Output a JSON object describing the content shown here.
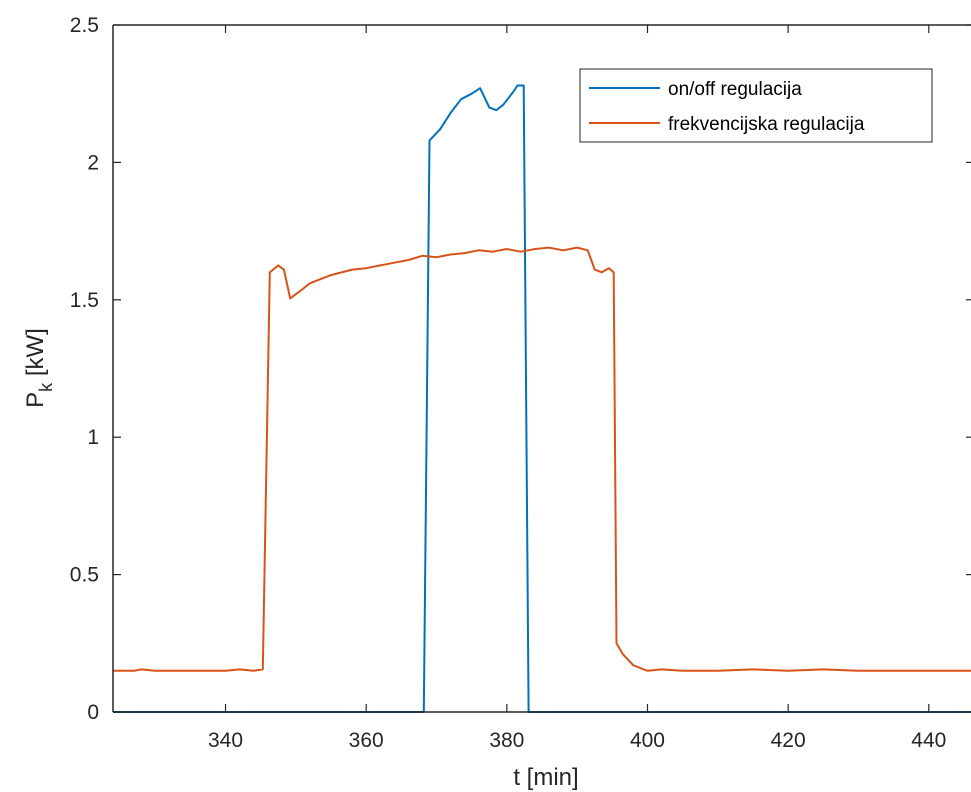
{
  "chart_data": {
    "type": "line",
    "xlabel": "t [min]",
    "ylabel": {
      "main": "P",
      "sub": "k",
      "unit": " [kW]"
    },
    "xlim": [
      324,
      446
    ],
    "ylim": [
      0,
      2.5
    ],
    "xticks": [
      340,
      360,
      380,
      400,
      420,
      440
    ],
    "xtick_labels": [
      "340",
      "360",
      "380",
      "400",
      "420",
      "440"
    ],
    "yticks": [
      0,
      0.5,
      1,
      1.5,
      2,
      2.5
    ],
    "ytick_labels": [
      "0",
      "0.5",
      "1",
      "1.5",
      "2",
      "2.5"
    ],
    "grid": false,
    "legend_position": "top-right",
    "series": [
      {
        "name": "on/off regulacija",
        "color": "#0072BD",
        "points": [
          [
            324,
            0
          ],
          [
            368.2,
            0
          ],
          [
            369.0,
            2.08
          ],
          [
            370.5,
            2.12
          ],
          [
            372.0,
            2.18
          ],
          [
            373.5,
            2.23
          ],
          [
            375.0,
            2.25
          ],
          [
            376.2,
            2.27
          ],
          [
            377.5,
            2.2
          ],
          [
            378.5,
            2.19
          ],
          [
            379.5,
            2.21
          ],
          [
            381.0,
            2.26
          ],
          [
            381.5,
            2.28
          ],
          [
            382.4,
            2.28
          ],
          [
            383.1,
            0
          ],
          [
            446,
            0
          ]
        ]
      },
      {
        "name": "frekvencijska regulacija",
        "color": "#D95319",
        "points": [
          [
            324,
            0.15
          ],
          [
            327,
            0.15
          ],
          [
            328,
            0.155
          ],
          [
            330,
            0.15
          ],
          [
            335,
            0.15
          ],
          [
            340,
            0.15
          ],
          [
            342,
            0.155
          ],
          [
            344,
            0.15
          ],
          [
            345.3,
            0.155
          ],
          [
            346.3,
            1.6
          ],
          [
            347.5,
            1.625
          ],
          [
            348.3,
            1.61
          ],
          [
            349.2,
            1.505
          ],
          [
            350.5,
            1.53
          ],
          [
            352,
            1.56
          ],
          [
            355,
            1.59
          ],
          [
            358,
            1.61
          ],
          [
            360,
            1.615
          ],
          [
            362,
            1.625
          ],
          [
            364,
            1.635
          ],
          [
            366,
            1.645
          ],
          [
            368,
            1.66
          ],
          [
            370,
            1.655
          ],
          [
            372,
            1.665
          ],
          [
            374,
            1.67
          ],
          [
            376,
            1.68
          ],
          [
            378,
            1.675
          ],
          [
            380,
            1.685
          ],
          [
            382,
            1.675
          ],
          [
            384,
            1.685
          ],
          [
            386,
            1.69
          ],
          [
            388,
            1.68
          ],
          [
            390,
            1.69
          ],
          [
            391.5,
            1.68
          ],
          [
            392.5,
            1.61
          ],
          [
            393.5,
            1.6
          ],
          [
            394.5,
            1.615
          ],
          [
            395.2,
            1.6
          ],
          [
            395.6,
            0.25
          ],
          [
            396.5,
            0.21
          ],
          [
            398,
            0.17
          ],
          [
            400,
            0.15
          ],
          [
            402,
            0.155
          ],
          [
            405,
            0.15
          ],
          [
            410,
            0.15
          ],
          [
            415,
            0.155
          ],
          [
            420,
            0.15
          ],
          [
            425,
            0.155
          ],
          [
            430,
            0.15
          ],
          [
            435,
            0.15
          ],
          [
            440,
            0.15
          ],
          [
            446,
            0.15
          ]
        ]
      }
    ]
  }
}
